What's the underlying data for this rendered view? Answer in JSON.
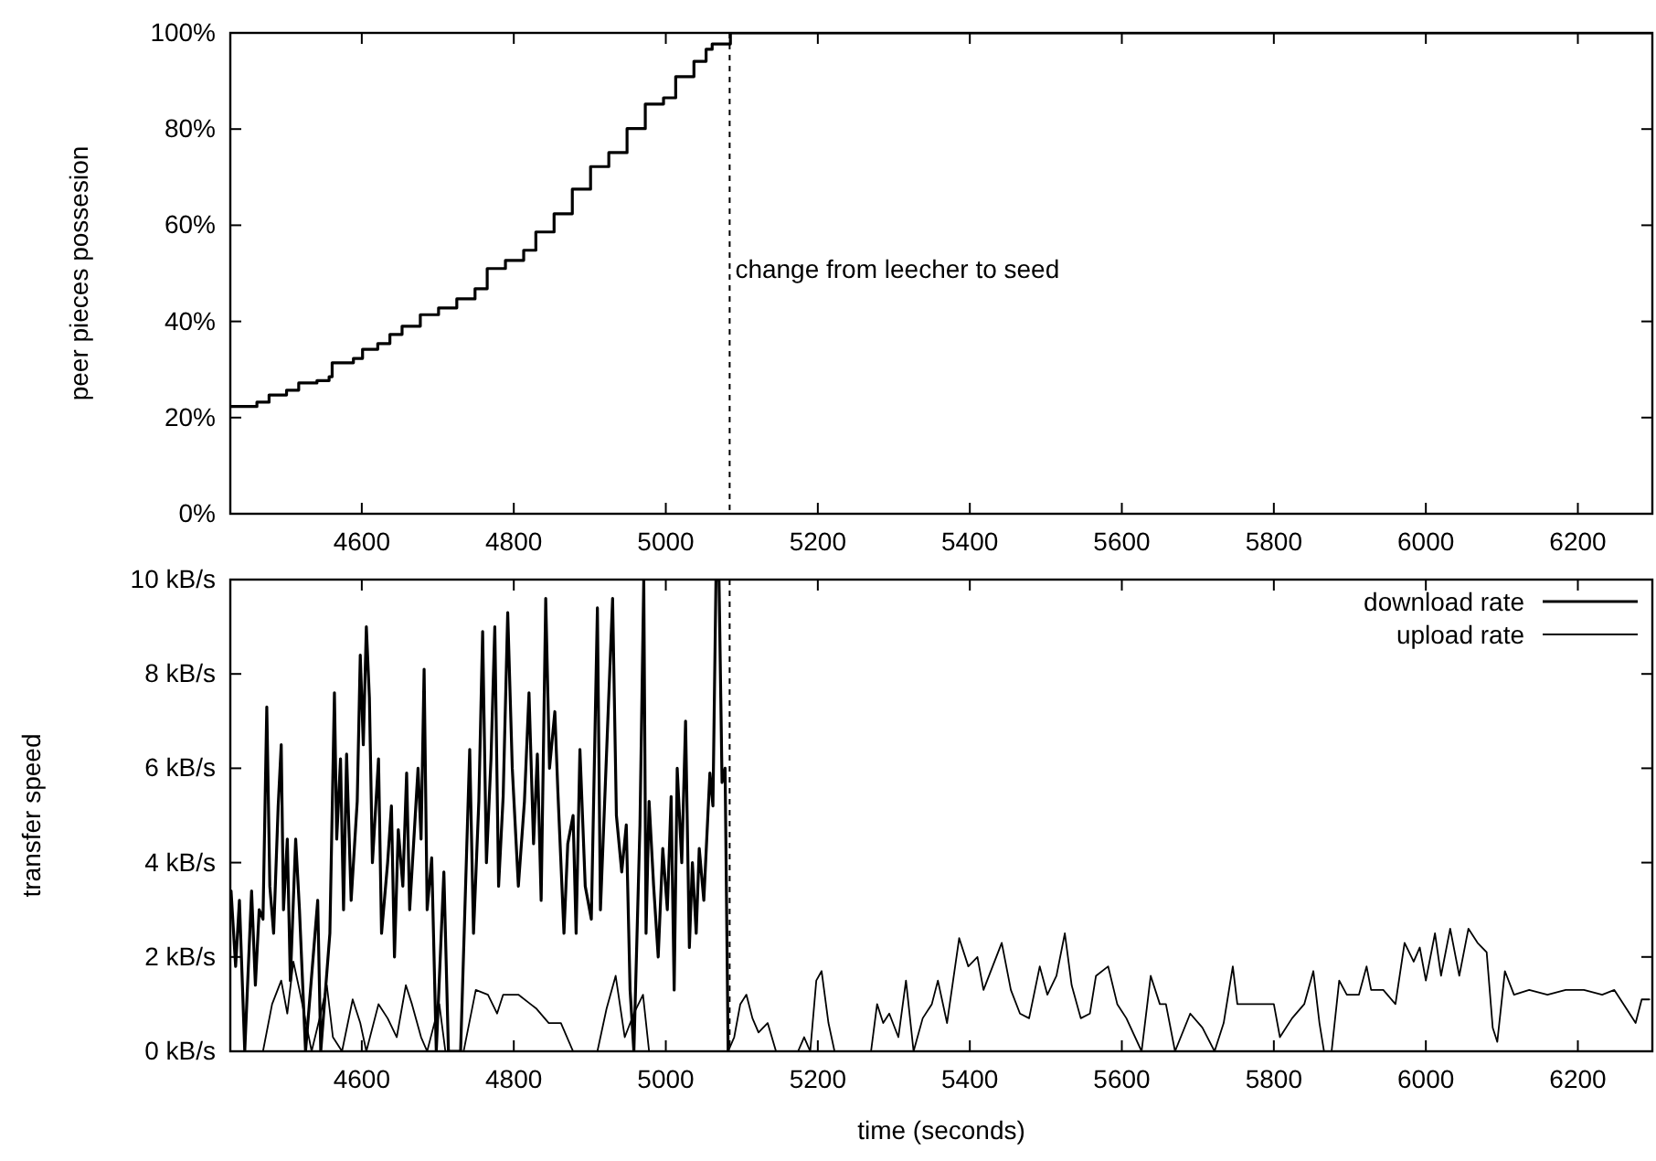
{
  "chart_data": [
    {
      "type": "step",
      "ylabel": "peer pieces possesion",
      "xlim": [
        4427,
        6298
      ],
      "xticks": [
        4600,
        4800,
        5000,
        5200,
        5400,
        5600,
        5800,
        6000,
        6200
      ],
      "ylim": [
        0,
        100
      ],
      "yticks": [
        {
          "value": 0,
          "label": "0%"
        },
        {
          "value": 20,
          "label": "20%"
        },
        {
          "value": 40,
          "label": "40%"
        },
        {
          "value": 60,
          "label": "60%"
        },
        {
          "value": 80,
          "label": "80%"
        },
        {
          "value": 100,
          "label": "100%"
        }
      ],
      "grid": false,
      "legend": false,
      "ref_lines": [
        {
          "axis": "x",
          "value": 5084,
          "label": "change from leecher to seed",
          "line_style": "dashed",
          "color": "#000000"
        }
      ],
      "series": [
        {
          "color": "#000000",
          "x": [
            4427,
            4462,
            4478,
            4501,
            4517,
            4541,
            4557,
            4561,
            4589,
            4601,
            4621,
            4637,
            4653,
            4677,
            4701,
            4725,
            4749,
            4765,
            4789,
            4813,
            4829,
            4853,
            4877,
            4901,
            4925,
            4949,
            4973,
            4997,
            5013,
            5037,
            5053,
            5061,
            5085,
            6298
          ],
          "values": [
            22.3,
            23.2,
            24.7,
            25.7,
            27.2,
            27.7,
            28.5,
            31.4,
            32.3,
            34.2,
            35.4,
            37.3,
            39,
            41.4,
            42.8,
            44.7,
            46.8,
            51,
            52.7,
            54.8,
            58.6,
            62.4,
            67.5,
            72.2,
            75.1,
            80.1,
            85.2,
            86.5,
            90.9,
            94.1,
            96.6,
            97.7,
            100,
            100
          ]
        }
      ]
    },
    {
      "type": "line",
      "xlabel": "time (seconds)",
      "ylabel": "transfer speed",
      "xlim": [
        4427,
        6298
      ],
      "xticks": [
        4600,
        4800,
        5000,
        5200,
        5400,
        5600,
        5800,
        6000,
        6200
      ],
      "ylim": [
        0,
        10
      ],
      "yticks": [
        {
          "value": 0,
          "label": "0 kB/s"
        },
        {
          "value": 2,
          "label": "2 kB/s"
        },
        {
          "value": 4,
          "label": "4 kB/s"
        },
        {
          "value": 6,
          "label": "6 kB/s"
        },
        {
          "value": 8,
          "label": "8 kB/s"
        },
        {
          "value": 10,
          "label": "10 kB/s"
        }
      ],
      "grid": false,
      "legend": "top right",
      "ref_lines": [
        {
          "axis": "x",
          "value": 5084,
          "line_style": "dashed",
          "color": "#000000"
        }
      ],
      "series": [
        {
          "name": "download rate",
          "color": "#000000",
          "x": [
            4428,
            4434,
            4439,
            4446,
            4455,
            4460,
            4465,
            4470,
            4475,
            4479,
            4484,
            4490,
            4494,
            4497,
            4502,
            4506,
            4513,
            4518,
            4526,
            4542,
            4546,
            4558,
            4564,
            4567,
            4572,
            4576,
            4580,
            4586,
            4594,
            4598,
            4602,
            4606,
            4610,
            4614,
            4622,
            4626,
            4634,
            4639,
            4643,
            4648,
            4654,
            4659,
            4663,
            4670,
            4674,
            4678,
            4682,
            4686,
            4692,
            4698,
            4708,
            4714,
            4730,
            4742,
            4747,
            4754,
            4759,
            4764,
            4770,
            4775,
            4780,
            4786,
            4792,
            4798,
            4806,
            4814,
            4820,
            4826,
            4831,
            4836,
            4842,
            4847,
            4854,
            4858,
            4866,
            4871,
            4878,
            4882,
            4887,
            4894,
            4902,
            4910,
            4914,
            4922,
            4930,
            4935,
            4942,
            4948,
            4953,
            4958,
            4966,
            4971,
            4974,
            4978,
            4984,
            4990,
            4996,
            5002,
            5007,
            5011,
            5015,
            5021,
            5026,
            5031,
            5035,
            5040,
            5044,
            5050,
            5058,
            5062,
            5066,
            5070,
            5074,
            5078,
            5082
          ],
          "values": [
            3.4,
            1.8,
            3.2,
            0,
            3.4,
            1.4,
            3,
            2.8,
            7.3,
            3.5,
            2.5,
            5.2,
            6.5,
            3,
            4.5,
            1.5,
            4.5,
            3,
            0,
            3.2,
            0,
            2.5,
            7.6,
            4.5,
            6.2,
            3,
            6.3,
            3.2,
            5.3,
            8.4,
            6.5,
            9,
            7.5,
            4,
            6.2,
            2.5,
            4,
            5.2,
            2,
            4.7,
            3.5,
            5.9,
            3,
            4.9,
            6,
            4.5,
            8.1,
            3,
            4.1,
            0,
            3.8,
            0,
            0,
            6.4,
            2.5,
            5.3,
            8.9,
            4,
            6.2,
            9,
            3.5,
            5.4,
            9.3,
            6,
            3.5,
            5.3,
            7.6,
            4.4,
            6.3,
            3.2,
            9.6,
            6,
            7.2,
            5.5,
            2.5,
            4.4,
            5,
            2.5,
            6.4,
            3.5,
            2.8,
            9.4,
            3,
            6.3,
            9.6,
            5,
            3.8,
            4.8,
            1.3,
            0,
            4.8,
            10,
            2.5,
            5.3,
            3.5,
            2,
            4.3,
            3,
            5.4,
            1.3,
            6,
            4,
            7,
            2.2,
            4,
            2.5,
            4.3,
            3.2,
            5.9,
            5.2,
            10,
            10,
            5.7,
            6,
            0
          ]
        },
        {
          "name": "upload rate",
          "color": "#000000",
          "x": [
            4428,
            4470,
            4482,
            4494,
            4502,
            4510,
            4518,
            4534,
            4546,
            4554,
            4562,
            4574,
            4588,
            4598,
            4606,
            4622,
            4634,
            4646,
            4658,
            4666,
            4678,
            4686,
            4702,
            4710,
            4734,
            4750,
            4766,
            4778,
            4786,
            4806,
            4822,
            4830,
            4846,
            4862,
            4878,
            4910,
            4922,
            4934,
            4946,
            4958,
            4970,
            4978,
            5082,
            5090,
            5098,
            5106,
            5114,
            5122,
            5134,
            5145,
            5174,
            5182,
            5190,
            5198,
            5205,
            5214,
            5222,
            5270,
            5278,
            5286,
            5294,
            5306,
            5316,
            5326,
            5338,
            5350,
            5358,
            5370,
            5386,
            5398,
            5410,
            5418,
            5430,
            5442,
            5454,
            5466,
            5478,
            5492,
            5502,
            5514,
            5525,
            5534,
            5546,
            5558,
            5566,
            5582,
            5594,
            5606,
            5626,
            5638,
            5650,
            5658,
            5670,
            5690,
            5706,
            5722,
            5734,
            5746,
            5752,
            5776,
            5800,
            5808,
            5824,
            5840,
            5852,
            5860,
            5866,
            5876,
            5886,
            5896,
            5912,
            5922,
            5928,
            5944,
            5960,
            5972,
            5984,
            5992,
            6000,
            6012,
            6020,
            6032,
            6044,
            6056,
            6068,
            6080,
            6088,
            6094,
            6104,
            6116,
            6136,
            6160,
            6184,
            6208,
            6232,
            6248,
            6264,
            6276,
            6284,
            6294
          ],
          "values": [
            0,
            0,
            1,
            1.5,
            0.8,
            1.9,
            1.3,
            0,
            0.8,
            1.4,
            0.3,
            0,
            1.1,
            0.6,
            0,
            1,
            0.7,
            0.3,
            1.4,
            1,
            0.3,
            0,
            1,
            0,
            0,
            1.3,
            1.2,
            0.8,
            1.2,
            1.2,
            1,
            0.9,
            0.6,
            0.6,
            0,
            0,
            0.9,
            1.6,
            0.3,
            0.8,
            1.2,
            0,
            0,
            0.3,
            1,
            1.2,
            0.7,
            0.4,
            0.6,
            0,
            0,
            0.3,
            0,
            1.5,
            1.7,
            0.6,
            0,
            0,
            1,
            0.6,
            0.8,
            0.3,
            1.5,
            0,
            0.7,
            1,
            1.5,
            0.6,
            2.4,
            1.8,
            2,
            1.3,
            1.8,
            2.3,
            1.3,
            0.8,
            0.7,
            1.8,
            1.2,
            1.6,
            2.5,
            1.4,
            0.7,
            0.8,
            1.6,
            1.8,
            1,
            0.7,
            0,
            1.6,
            1,
            1,
            0,
            0.8,
            0.5,
            0,
            0.6,
            1.8,
            1,
            1,
            1,
            0.3,
            0.7,
            1,
            1.7,
            0.6,
            0,
            0,
            1.5,
            1.2,
            1.2,
            1.8,
            1.3,
            1.3,
            1,
            2.3,
            1.9,
            2.2,
            1.5,
            2.5,
            1.6,
            2.6,
            1.6,
            2.6,
            2.3,
            2.1,
            0.5,
            0.2,
            1.7,
            1.2,
            1.3,
            1.2,
            1.3,
            1.3,
            1.2,
            1.3,
            0.9,
            0.6,
            1.1,
            1.1
          ]
        }
      ]
    }
  ]
}
